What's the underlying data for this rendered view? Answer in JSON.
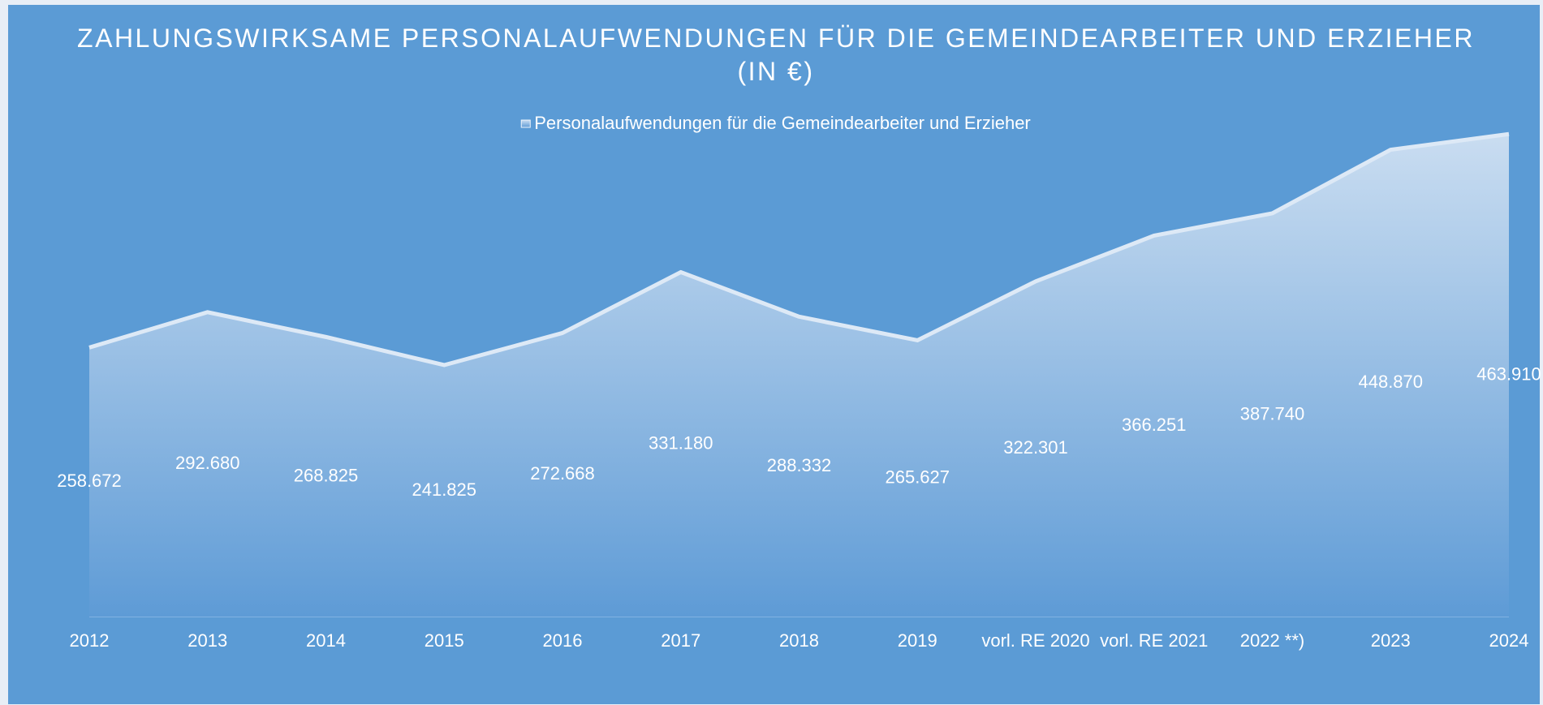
{
  "chart_data": {
    "type": "area",
    "title": "ZAHLUNGSWIRKSAME PERSONALAUFWENDUNGEN FÜR DIE GEMEINDEARBEITER UND ERZIEHER (IN €)",
    "categories": [
      "2012",
      "2013",
      "2014",
      "2015",
      "2016",
      "2017",
      "2018",
      "2019",
      "vorl. RE 2020",
      "vorl. RE 2021",
      "2022 **)",
      "2023",
      "2024"
    ],
    "series": [
      {
        "name": "Personalaufwendungen für die Gemeindearbeiter und Erzieher",
        "color": "#dde9f6",
        "values": [
          258672,
          292680,
          268825,
          241825,
          272668,
          331180,
          288332,
          265627,
          322301,
          366251,
          387740,
          448870,
          463910
        ],
        "value_labels": [
          "258.672",
          "292.680",
          "268.825",
          "241.825",
          "272.668",
          "331.180",
          "288.332",
          "265.627",
          "322.301",
          "366.251",
          "387.740",
          "448.870",
          "463.910"
        ]
      }
    ],
    "ylim": [
      0,
      500000
    ],
    "legend": "top"
  }
}
